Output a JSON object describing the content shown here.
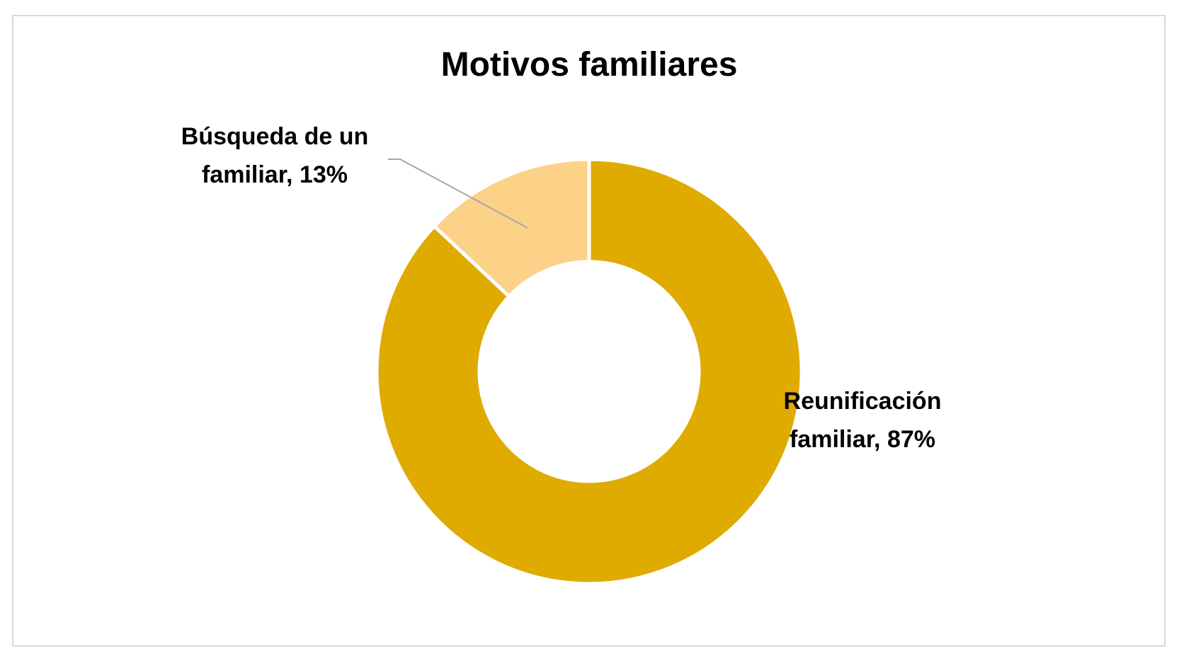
{
  "chart_data": {
    "type": "pie",
    "variant": "donut",
    "title": "Motivos familiares",
    "slices": [
      {
        "label": "Reunificación familiar",
        "value": 87,
        "display": "87%",
        "color": "#dfab00",
        "label_lines": [
          "Reunificación",
          "familiar, 87%"
        ]
      },
      {
        "label": "Búsqueda de un familiar",
        "value": 13,
        "display": "13%",
        "color": "#fcd188",
        "label_lines": [
          "Búsqueda de un",
          "familiar, 13%"
        ]
      }
    ],
    "leader_line_color": "#a6a6a6"
  }
}
